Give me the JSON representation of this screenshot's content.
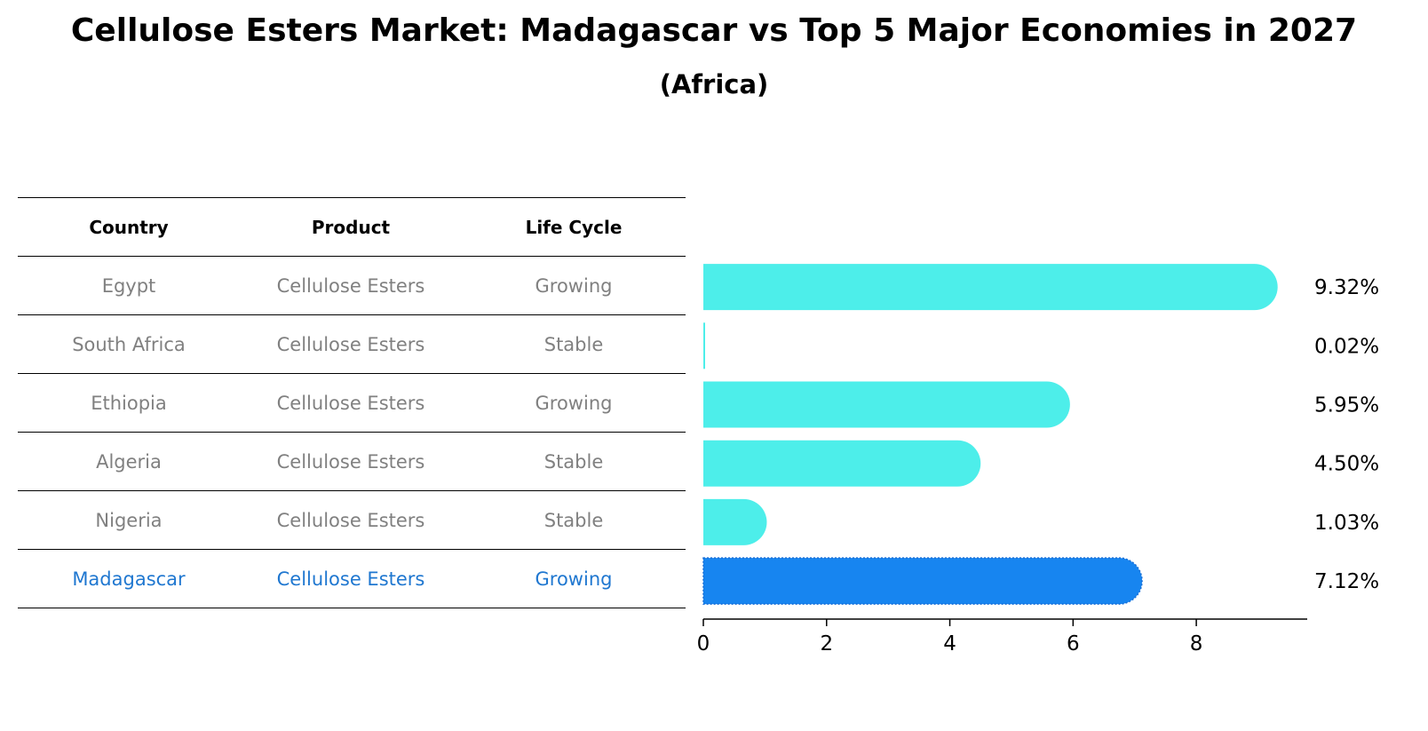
{
  "title": "Cellulose Esters Market: Madagascar vs Top 5 Major Economies in 2027",
  "subtitle": "(Africa)",
  "table": {
    "headers": [
      "Country",
      "Product",
      "Life Cycle"
    ],
    "rows": [
      [
        "Egypt",
        "Cellulose Esters",
        "Growing"
      ],
      [
        "South Africa",
        "Cellulose Esters",
        "Stable"
      ],
      [
        "Ethiopia",
        "Cellulose Esters",
        "Growing"
      ],
      [
        "Algeria",
        "Cellulose Esters",
        "Stable"
      ],
      [
        "Nigeria",
        "Cellulose Esters",
        "Stable"
      ],
      [
        "Madagascar",
        "Cellulose Esters",
        "Growing"
      ]
    ]
  },
  "chart_data": {
    "type": "bar",
    "orientation": "horizontal",
    "categories": [
      "Egypt",
      "South Africa",
      "Ethiopia",
      "Algeria",
      "Nigeria",
      "Madagascar"
    ],
    "values": [
      9.32,
      0.02,
      5.95,
      4.5,
      1.03,
      7.12
    ],
    "value_labels": [
      "9.32%",
      "0.02%",
      "5.95%",
      "4.50%",
      "1.03%",
      "7.12%"
    ],
    "highlight": "Madagascar",
    "xlim": [
      0,
      9.8
    ],
    "xticks": [
      0,
      2,
      4,
      6,
      8
    ],
    "colors": {
      "default": "#4deeea",
      "highlight": "#1785f0"
    }
  }
}
